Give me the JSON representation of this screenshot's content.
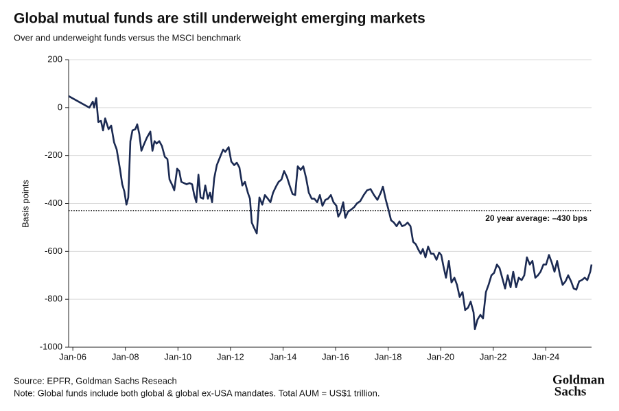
{
  "chart_data": {
    "type": "line",
    "title": "Global mutual funds are still underweight emerging markets",
    "subtitle": "Over and underweight funds versus the MSCI benchmark",
    "y_label": "Basis points",
    "source": "Source: EPFR, Goldman Sachs Reseach",
    "note": "Note: Global funds include both global & global ex-USA mandates. Total AUM = US$1 trillion.",
    "logo": [
      "Goldman",
      "Sachs"
    ],
    "reference_line": {
      "value": -430,
      "label": "20 year average: –430 bps"
    },
    "xlim": [
      2005.84,
      2025.74
    ],
    "xticks": [
      {
        "value": 2006,
        "label": "Jan-06"
      },
      {
        "value": 2008,
        "label": "Jan-08"
      },
      {
        "value": 2010,
        "label": "Jan-10"
      },
      {
        "value": 2012,
        "label": "Jan-12"
      },
      {
        "value": 2014,
        "label": "Jan-14"
      },
      {
        "value": 2016,
        "label": "Jan-16"
      },
      {
        "value": 2018,
        "label": "Jan-18"
      },
      {
        "value": 2020,
        "label": "Jan-20"
      },
      {
        "value": 2022,
        "label": "Jan-22"
      },
      {
        "value": 2024,
        "label": "Jan-24"
      }
    ],
    "ylim": [
      -1000,
      200
    ],
    "yticks": [
      200,
      0,
      -200,
      -400,
      -600,
      -800,
      -1000
    ],
    "grid": true,
    "x": [
      2005.84,
      2006.63,
      2006.76,
      2006.81,
      2006.89,
      2006.97,
      2007.07,
      2007.15,
      2007.23,
      2007.36,
      2007.46,
      2007.57,
      2007.67,
      2007.8,
      2007.88,
      2007.96,
      2008.04,
      2008.11,
      2008.19,
      2008.27,
      2008.38,
      2008.45,
      2008.53,
      2008.61,
      2008.72,
      2008.82,
      2008.95,
      2009.03,
      2009.11,
      2009.19,
      2009.29,
      2009.39,
      2009.5,
      2009.6,
      2009.68,
      2009.79,
      2009.86,
      2009.97,
      2010.05,
      2010.13,
      2010.23,
      2010.33,
      2010.44,
      2010.54,
      2010.62,
      2010.7,
      2010.78,
      2010.86,
      2010.96,
      2011.04,
      2011.14,
      2011.22,
      2011.3,
      2011.38,
      2011.48,
      2011.59,
      2011.72,
      2011.8,
      2011.93,
      2012.03,
      2012.14,
      2012.24,
      2012.34,
      2012.45,
      2012.55,
      2012.66,
      2012.74,
      2012.81,
      2012.89,
      2013.0,
      2013.1,
      2013.21,
      2013.31,
      2013.42,
      2013.52,
      2013.62,
      2013.73,
      2013.83,
      2013.94,
      2014.04,
      2014.15,
      2014.25,
      2014.36,
      2014.46,
      2014.56,
      2014.67,
      2014.77,
      2014.88,
      2014.98,
      2015.09,
      2015.19,
      2015.3,
      2015.4,
      2015.5,
      2015.61,
      2015.71,
      2015.82,
      2015.92,
      2016.03,
      2016.1,
      2016.18,
      2016.29,
      2016.37,
      2016.47,
      2016.6,
      2016.71,
      2016.81,
      2016.94,
      2017.07,
      2017.2,
      2017.33,
      2017.46,
      2017.59,
      2017.72,
      2017.8,
      2017.91,
      2018.01,
      2018.11,
      2018.22,
      2018.32,
      2018.43,
      2018.53,
      2018.64,
      2018.74,
      2018.85,
      2018.95,
      2019.05,
      2019.16,
      2019.24,
      2019.32,
      2019.42,
      2019.52,
      2019.63,
      2019.73,
      2019.84,
      2019.94,
      2020.02,
      2020.1,
      2020.2,
      2020.31,
      2020.41,
      2020.52,
      2020.62,
      2020.72,
      2020.83,
      2020.93,
      2021.04,
      2021.14,
      2021.25,
      2021.3,
      2021.4,
      2021.51,
      2021.61,
      2021.72,
      2021.82,
      2021.93,
      2022.03,
      2022.14,
      2022.24,
      2022.34,
      2022.45,
      2022.55,
      2022.66,
      2022.76,
      2022.87,
      2022.97,
      2023.08,
      2023.18,
      2023.28,
      2023.39,
      2023.49,
      2023.6,
      2023.7,
      2023.8,
      2023.91,
      2024.01,
      2024.12,
      2024.22,
      2024.33,
      2024.43,
      2024.54,
      2024.64,
      2024.75,
      2024.85,
      2024.96,
      2025.06,
      2025.16,
      2025.27,
      2025.37,
      2025.48,
      2025.58,
      2025.69,
      2025.74
    ],
    "series": [
      {
        "color": "#1b2a52",
        "values": [
          48,
          0,
          25,
          0,
          40,
          -60,
          -55,
          -95,
          -45,
          -90,
          -75,
          -145,
          -175,
          -260,
          -320,
          -350,
          -405,
          -375,
          -140,
          -95,
          -90,
          -70,
          -110,
          -180,
          -150,
          -125,
          -100,
          -180,
          -140,
          -150,
          -140,
          -160,
          -205,
          -215,
          -300,
          -325,
          -345,
          -255,
          -265,
          -310,
          -315,
          -320,
          -315,
          -320,
          -365,
          -395,
          -280,
          -375,
          -380,
          -325,
          -380,
          -355,
          -395,
          -295,
          -240,
          -210,
          -175,
          -185,
          -165,
          -225,
          -240,
          -230,
          -250,
          -325,
          -310,
          -355,
          -380,
          -480,
          -500,
          -525,
          -375,
          -405,
          -365,
          -380,
          -395,
          -355,
          -330,
          -310,
          -300,
          -265,
          -290,
          -325,
          -360,
          -365,
          -245,
          -260,
          -245,
          -295,
          -355,
          -380,
          -380,
          -395,
          -365,
          -410,
          -385,
          -380,
          -365,
          -395,
          -410,
          -455,
          -440,
          -395,
          -460,
          -435,
          -425,
          -415,
          -400,
          -390,
          -365,
          -345,
          -340,
          -365,
          -385,
          -355,
          -330,
          -385,
          -425,
          -470,
          -480,
          -495,
          -475,
          -495,
          -490,
          -480,
          -495,
          -560,
          -570,
          -595,
          -610,
          -590,
          -625,
          -580,
          -610,
          -610,
          -635,
          -605,
          -615,
          -660,
          -710,
          -640,
          -730,
          -710,
          -740,
          -790,
          -770,
          -845,
          -835,
          -810,
          -855,
          -925,
          -885,
          -865,
          -880,
          -770,
          -740,
          -700,
          -690,
          -655,
          -670,
          -710,
          -755,
          -700,
          -750,
          -685,
          -750,
          -710,
          -720,
          -700,
          -625,
          -655,
          -640,
          -710,
          -700,
          -685,
          -655,
          -655,
          -615,
          -645,
          -685,
          -640,
          -700,
          -740,
          -725,
          -700,
          -725,
          -755,
          -760,
          -725,
          -720,
          -710,
          -720,
          -685,
          -655
        ]
      }
    ]
  }
}
